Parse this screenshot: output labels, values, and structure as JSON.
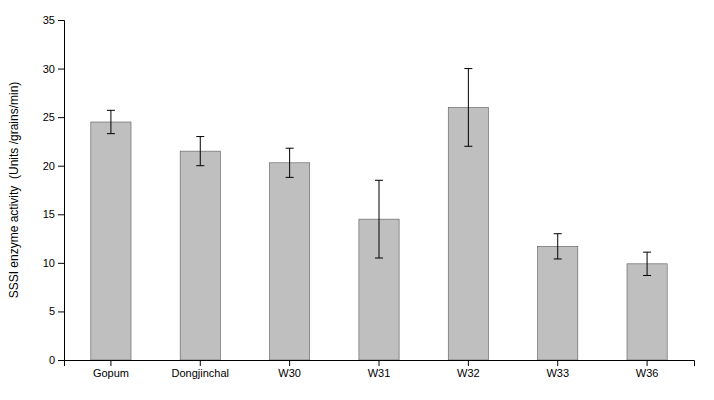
{
  "chart_data": {
    "type": "bar",
    "categories": [
      "Gopum",
      "Dongjinchal",
      "W30",
      "W31",
      "W32",
      "W33",
      "W36"
    ],
    "values": [
      24.5,
      21.5,
      20.3,
      14.5,
      26.0,
      11.7,
      9.9
    ],
    "errors": [
      1.2,
      1.5,
      1.5,
      4.0,
      4.0,
      1.3,
      1.2
    ],
    "color": "#bfbfbf",
    "ylabel": "SSSI enzyme activity  (Units /grains/min)",
    "ylim": [
      0,
      35
    ],
    "yticks": [
      0,
      5,
      10,
      15,
      20,
      25,
      30,
      35
    ],
    "grid": false
  }
}
